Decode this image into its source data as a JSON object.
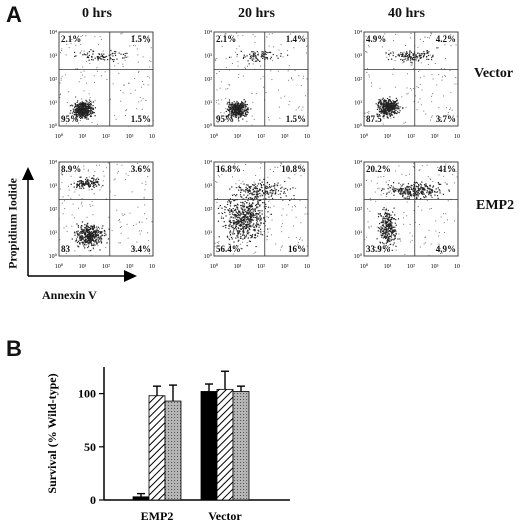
{
  "panel_a": {
    "label": "A",
    "times": [
      "0 hrs",
      "20 hrs",
      "40 hrs"
    ],
    "rows": [
      "Vector",
      "EMP2"
    ],
    "y_axis": "Propidium Iodide",
    "x_axis": "Annexin V",
    "ticks": [
      "10⁰",
      "10¹",
      "10²",
      "10³",
      "10⁴"
    ],
    "plots": [
      [
        {
          "ul": "2.1%",
          "ur": "1.5%",
          "ll": "95%",
          "lr": "1.5%"
        },
        {
          "ul": "2.1%",
          "ur": "1.4%",
          "ll": "95%",
          "lr": "1.5%"
        },
        {
          "ul": "4.9%",
          "ur": "4.2%",
          "ll": "87.5",
          "lr": "3.7%"
        }
      ],
      [
        {
          "ul": "8.9%",
          "ur": "3.6%",
          "ll": "83",
          "lr": "3.4%"
        },
        {
          "ul": "16.8%",
          "ur": "10.8%",
          "ll": "56.4%",
          "lr": "16%"
        },
        {
          "ul": "20.2%",
          "ur": "41%",
          "ll": "33.9%",
          "lr": "4.9%"
        }
      ]
    ]
  },
  "panel_b": {
    "label": "B",
    "chart_data": {
      "type": "bar",
      "categories": [
        "EMP2",
        "Vector"
      ],
      "series": [
        {
          "name": "",
          "fill": "solid",
          "values": [
            3,
            102
          ],
          "errors": [
            3,
            7
          ]
        },
        {
          "name": "",
          "fill": "hatched",
          "values": [
            98,
            104
          ],
          "errors": [
            9,
            17
          ]
        },
        {
          "name": "",
          "fill": "gray",
          "values": [
            93,
            102
          ],
          "errors": [
            15,
            5
          ]
        }
      ],
      "ylabel": "Survival (% Wild-type)",
      "yticks": [
        0,
        50,
        100
      ],
      "ylim": [
        0,
        125
      ]
    }
  }
}
